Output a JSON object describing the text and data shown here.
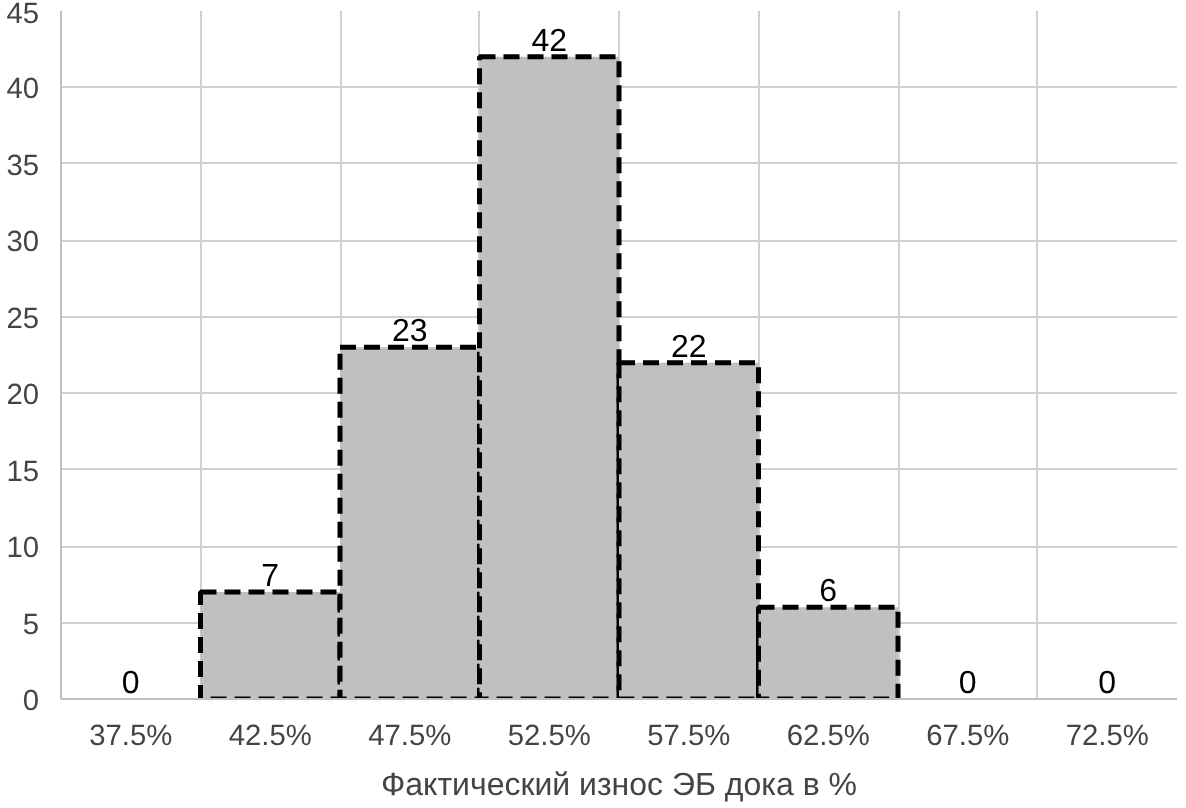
{
  "chart_data": {
    "type": "bar",
    "xlabel": "Фактический износ ЭБ дока в %",
    "categories": [
      "37.5%",
      "42.5%",
      "47.5%",
      "52.5%",
      "57.5%",
      "62.5%",
      "67.5%",
      "72.5%"
    ],
    "values": [
      0,
      7,
      23,
      42,
      22,
      6,
      0,
      0
    ],
    "color": "#c0c0c0",
    "ylim": [
      0,
      45
    ],
    "yticks": [
      0,
      5,
      10,
      15,
      20,
      25,
      30,
      35,
      40,
      45
    ],
    "grid": true,
    "data_labels": true,
    "line_style": "dashed"
  }
}
